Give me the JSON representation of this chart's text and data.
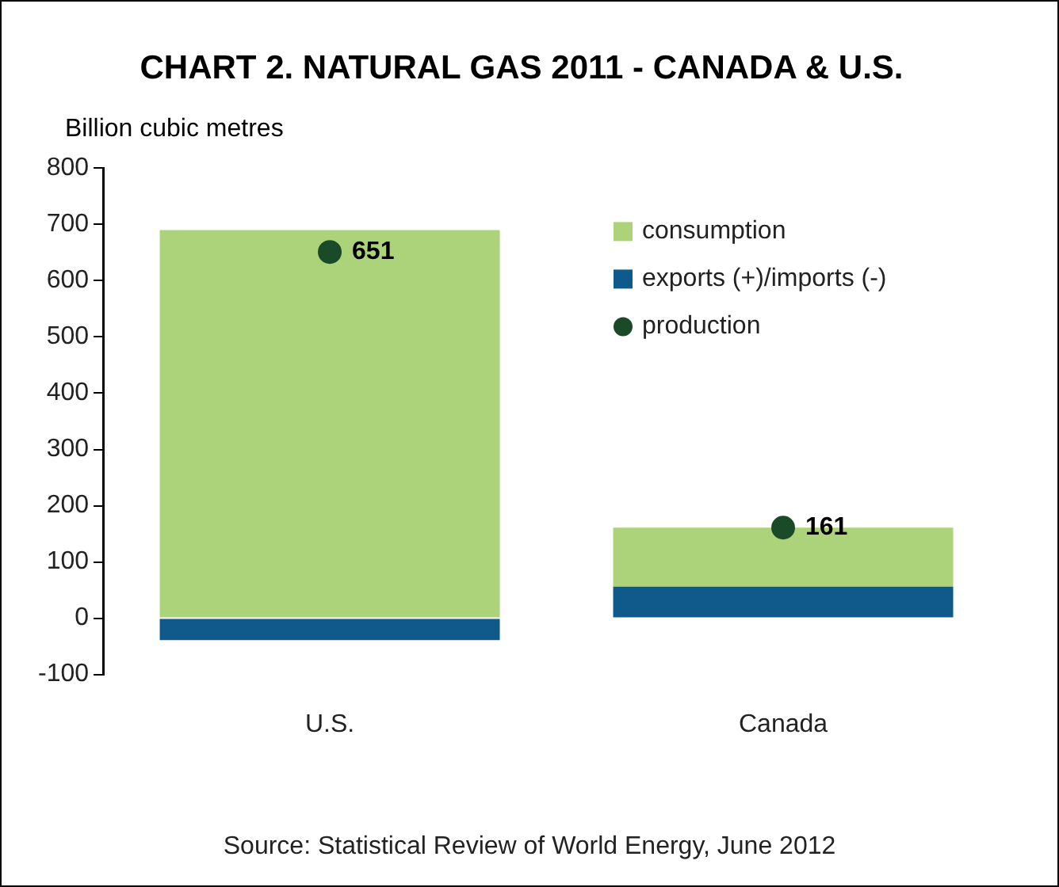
{
  "chart_data": {
    "type": "bar",
    "title": "CHART 2. NATURAL GAS 2011 - CANADA & U.S.",
    "ylabel": "Billion cubic metres",
    "categories": [
      "U.S.",
      "Canada"
    ],
    "stacked": true,
    "series": [
      {
        "name": "exports (+)/imports (-)",
        "color": "#0f5a8a",
        "values": [
          -39,
          56
        ]
      },
      {
        "name": "consumption",
        "color": "#acd27a",
        "values": [
          690,
          105
        ]
      },
      {
        "name": "production",
        "type": "scatter",
        "color": "#1b4a28",
        "x": [
          "U.S.",
          "Canada"
        ],
        "values": [
          651,
          161
        ],
        "value_labels": [
          "651",
          "161"
        ],
        "marker": "circle"
      }
    ],
    "ylim": [
      -100,
      800
    ],
    "yticks": [
      -100,
      0,
      100,
      200,
      300,
      400,
      500,
      600,
      700,
      800
    ],
    "grid": false,
    "legend": "top right",
    "annotations": [
      "Source: Statistical Review of World Energy, June 2012"
    ]
  }
}
